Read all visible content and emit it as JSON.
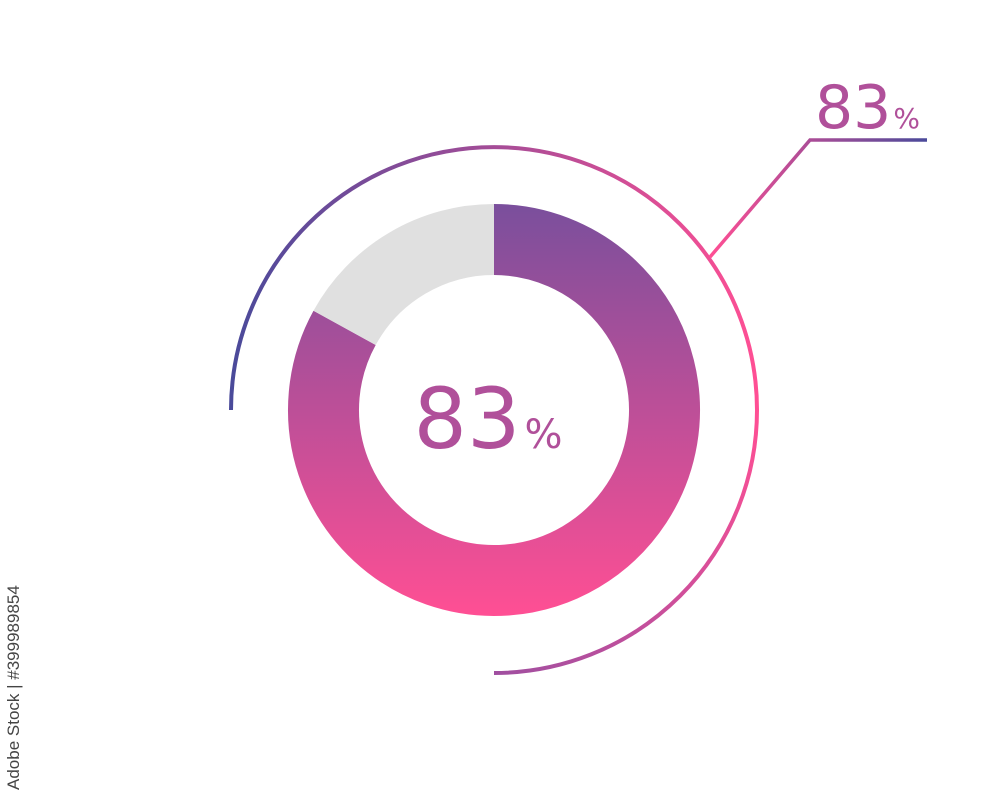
{
  "chart_data": {
    "type": "pie",
    "variant": "donut",
    "values": [
      83,
      17
    ],
    "center_label": {
      "number": "83",
      "unit": "%"
    },
    "callout_label": {
      "number": "83",
      "unit": "%"
    },
    "colors": {
      "filled_top": "#7a4f9c",
      "filled_bottom": "#ff4f94",
      "remainder": "#e0e0e0",
      "text": "#b0509a",
      "outer_arc_start": "#4a4a9a",
      "outer_arc_mid": "#ff4f94",
      "outer_arc_end": "#a04fa0"
    }
  },
  "watermark": "Adobe Stock | #399989854"
}
